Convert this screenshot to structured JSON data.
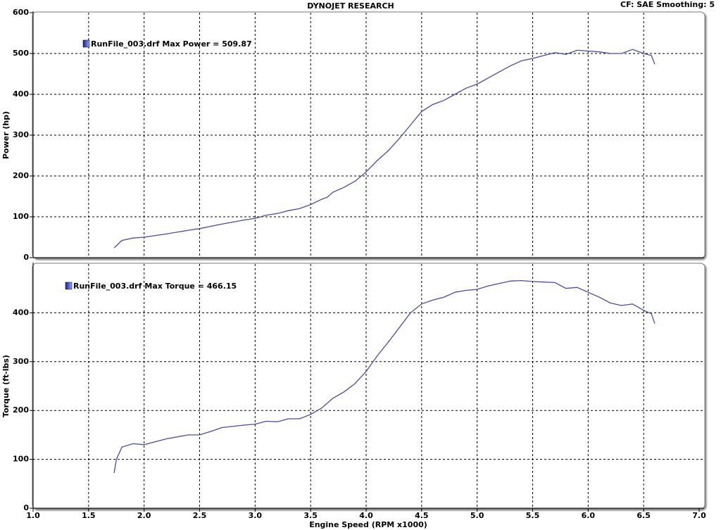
{
  "chart_data": [
    {
      "type": "line",
      "title": "DYNOJET RESEARCH",
      "annotation": "CF: SAE  Smoothing: 5",
      "ylabel": "Power (hp)",
      "ylim": [
        0,
        600
      ],
      "yticks": [
        0,
        100,
        200,
        300,
        400,
        500,
        600
      ],
      "xlim": [
        1,
        7
      ],
      "grid": true,
      "x": [
        1.73,
        1.8,
        1.9,
        2.0,
        2.2,
        2.4,
        2.5,
        2.7,
        2.9,
        3.0,
        3.1,
        3.2,
        3.3,
        3.4,
        3.5,
        3.6,
        3.65,
        3.7,
        3.8,
        3.9,
        4.0,
        4.1,
        4.2,
        4.3,
        4.4,
        4.5,
        4.6,
        4.7,
        4.8,
        4.9,
        5.0,
        5.1,
        5.2,
        5.3,
        5.4,
        5.5,
        5.6,
        5.7,
        5.8,
        5.9,
        6.0,
        6.1,
        6.2,
        6.3,
        6.4,
        6.5,
        6.57,
        6.6
      ],
      "series": [
        {
          "name": "RunFile_003.drf",
          "label": "Max Power = 509.87",
          "color": "#4b4ba6",
          "values": [
            24,
            42,
            48,
            50,
            58,
            67,
            71,
            82,
            92,
            96,
            104,
            108,
            115,
            120,
            130,
            143,
            148,
            160,
            172,
            187,
            210,
            238,
            262,
            292,
            325,
            358,
            375,
            385,
            400,
            415,
            425,
            440,
            455,
            470,
            482,
            488,
            495,
            502,
            498,
            508,
            506,
            504,
            500,
            500,
            510,
            500,
            495,
            474
          ]
        }
      ]
    },
    {
      "type": "line",
      "xlabel": "Engine Speed (RPM x1000)",
      "ylabel": "Torque (ft-lbs)",
      "ylim": [
        0,
        500
      ],
      "yticks": [
        0,
        100,
        200,
        300,
        400
      ],
      "xlim": [
        1,
        7
      ],
      "grid": true,
      "xticks": [
        {
          "value": 1,
          "label": "1.0"
        },
        1.5,
        {
          "value": 2,
          "label": "2.0"
        },
        2.5,
        {
          "value": 3,
          "label": "3.0"
        },
        3.5,
        {
          "value": 4,
          "label": "4.0"
        },
        4.5,
        {
          "value": 5,
          "label": "5.0"
        },
        5.5,
        {
          "value": 6,
          "label": "6.0"
        },
        6.5,
        {
          "value": 7,
          "label": "7.0"
        }
      ],
      "x": [
        1.73,
        1.75,
        1.8,
        1.9,
        2.0,
        2.1,
        2.2,
        2.4,
        2.5,
        2.6,
        2.7,
        2.9,
        3.0,
        3.1,
        3.2,
        3.3,
        3.4,
        3.5,
        3.6,
        3.7,
        3.8,
        3.9,
        4.0,
        4.1,
        4.2,
        4.3,
        4.4,
        4.5,
        4.6,
        4.7,
        4.8,
        4.9,
        5.0,
        5.1,
        5.2,
        5.3,
        5.4,
        5.5,
        5.6,
        5.7,
        5.8,
        5.9,
        6.0,
        6.1,
        6.2,
        6.3,
        6.4,
        6.5,
        6.57,
        6.6
      ],
      "series": [
        {
          "name": "RunFile_003.drf",
          "label": "Max Torque = 466.15",
          "color": "#4b4ba6",
          "values": [
            72,
            100,
            125,
            132,
            130,
            136,
            142,
            150,
            150,
            157,
            165,
            170,
            172,
            178,
            177,
            183,
            183,
            192,
            205,
            225,
            238,
            255,
            280,
            312,
            340,
            370,
            400,
            418,
            426,
            432,
            442,
            446,
            448,
            455,
            460,
            465,
            466,
            464,
            463,
            462,
            450,
            452,
            442,
            432,
            420,
            415,
            418,
            405,
            398,
            378
          ]
        }
      ]
    }
  ]
}
